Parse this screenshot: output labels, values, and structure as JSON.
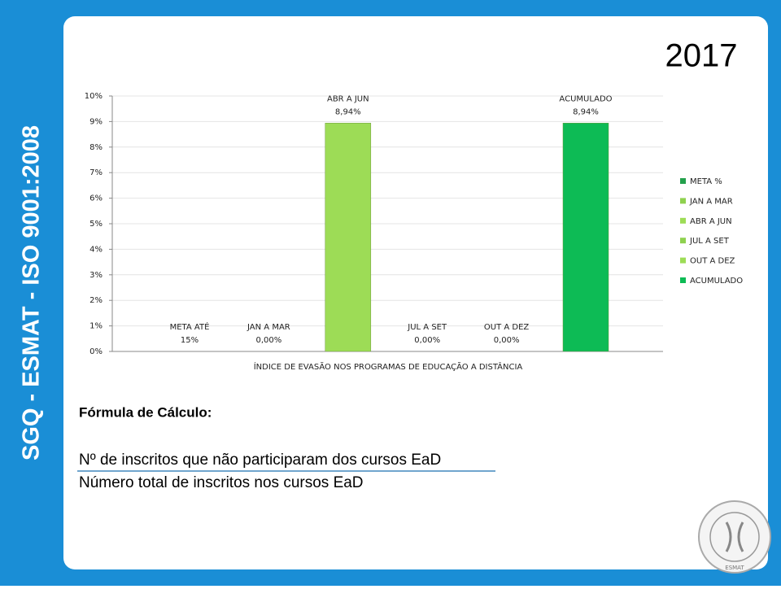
{
  "sidebar": "SGQ - ESMAT - ISO 9001:2008",
  "year": "2017",
  "chart_data": {
    "type": "bar",
    "x_label": "ÍNDICE DE EVASÃO NOS PROGRAMAS DE EDUCAÇÃO A DISTÂNCIA",
    "ylim": [
      0,
      10
    ],
    "yticks": [
      {
        "value": 0,
        "label": "0%"
      },
      {
        "value": 1,
        "label": "1%"
      },
      {
        "value": 2,
        "label": "2%"
      },
      {
        "value": 3,
        "label": "3%"
      },
      {
        "value": 4,
        "label": "4%"
      },
      {
        "value": 5,
        "label": "5%"
      },
      {
        "value": 6,
        "label": "6%"
      },
      {
        "value": 7,
        "label": "7%"
      },
      {
        "value": 8,
        "label": "8%"
      },
      {
        "value": 9,
        "label": "9%"
      },
      {
        "value": 10,
        "label": "10%"
      }
    ],
    "grid": true,
    "legend": "right",
    "series": [
      {
        "name": "META %",
        "label": "META ATÉ",
        "color": "#23a04c",
        "hidden": true,
        "values": [
          15
        ],
        "value_labels": [
          "15%"
        ]
      },
      {
        "name": "JAN A MAR",
        "color": "#8fd14f",
        "values": [
          0
        ],
        "value_labels": [
          "0,00%"
        ]
      },
      {
        "name": "ABR A JUN",
        "color": "#9ddc56",
        "values": [
          8.94
        ],
        "value_labels": [
          "8,94%"
        ]
      },
      {
        "name": "JUL A SET",
        "color": "#8fd14f",
        "values": [
          0
        ],
        "value_labels": [
          "0,00%"
        ]
      },
      {
        "name": "OUT A DEZ",
        "color": "#9ddc56",
        "values": [
          0
        ],
        "value_labels": [
          "0,00%"
        ]
      },
      {
        "name": "ACUMULADO",
        "color": "#0dbb55",
        "values": [
          8.94
        ],
        "value_labels": [
          "8,94%"
        ]
      }
    ]
  },
  "formula": {
    "title": "Fórmula de Cálculo:",
    "numerator": "Nº de inscritos que não participaram dos cursos EaD",
    "denominator": "Número total de inscritos nos cursos EaD"
  },
  "logo": "ESMAT"
}
